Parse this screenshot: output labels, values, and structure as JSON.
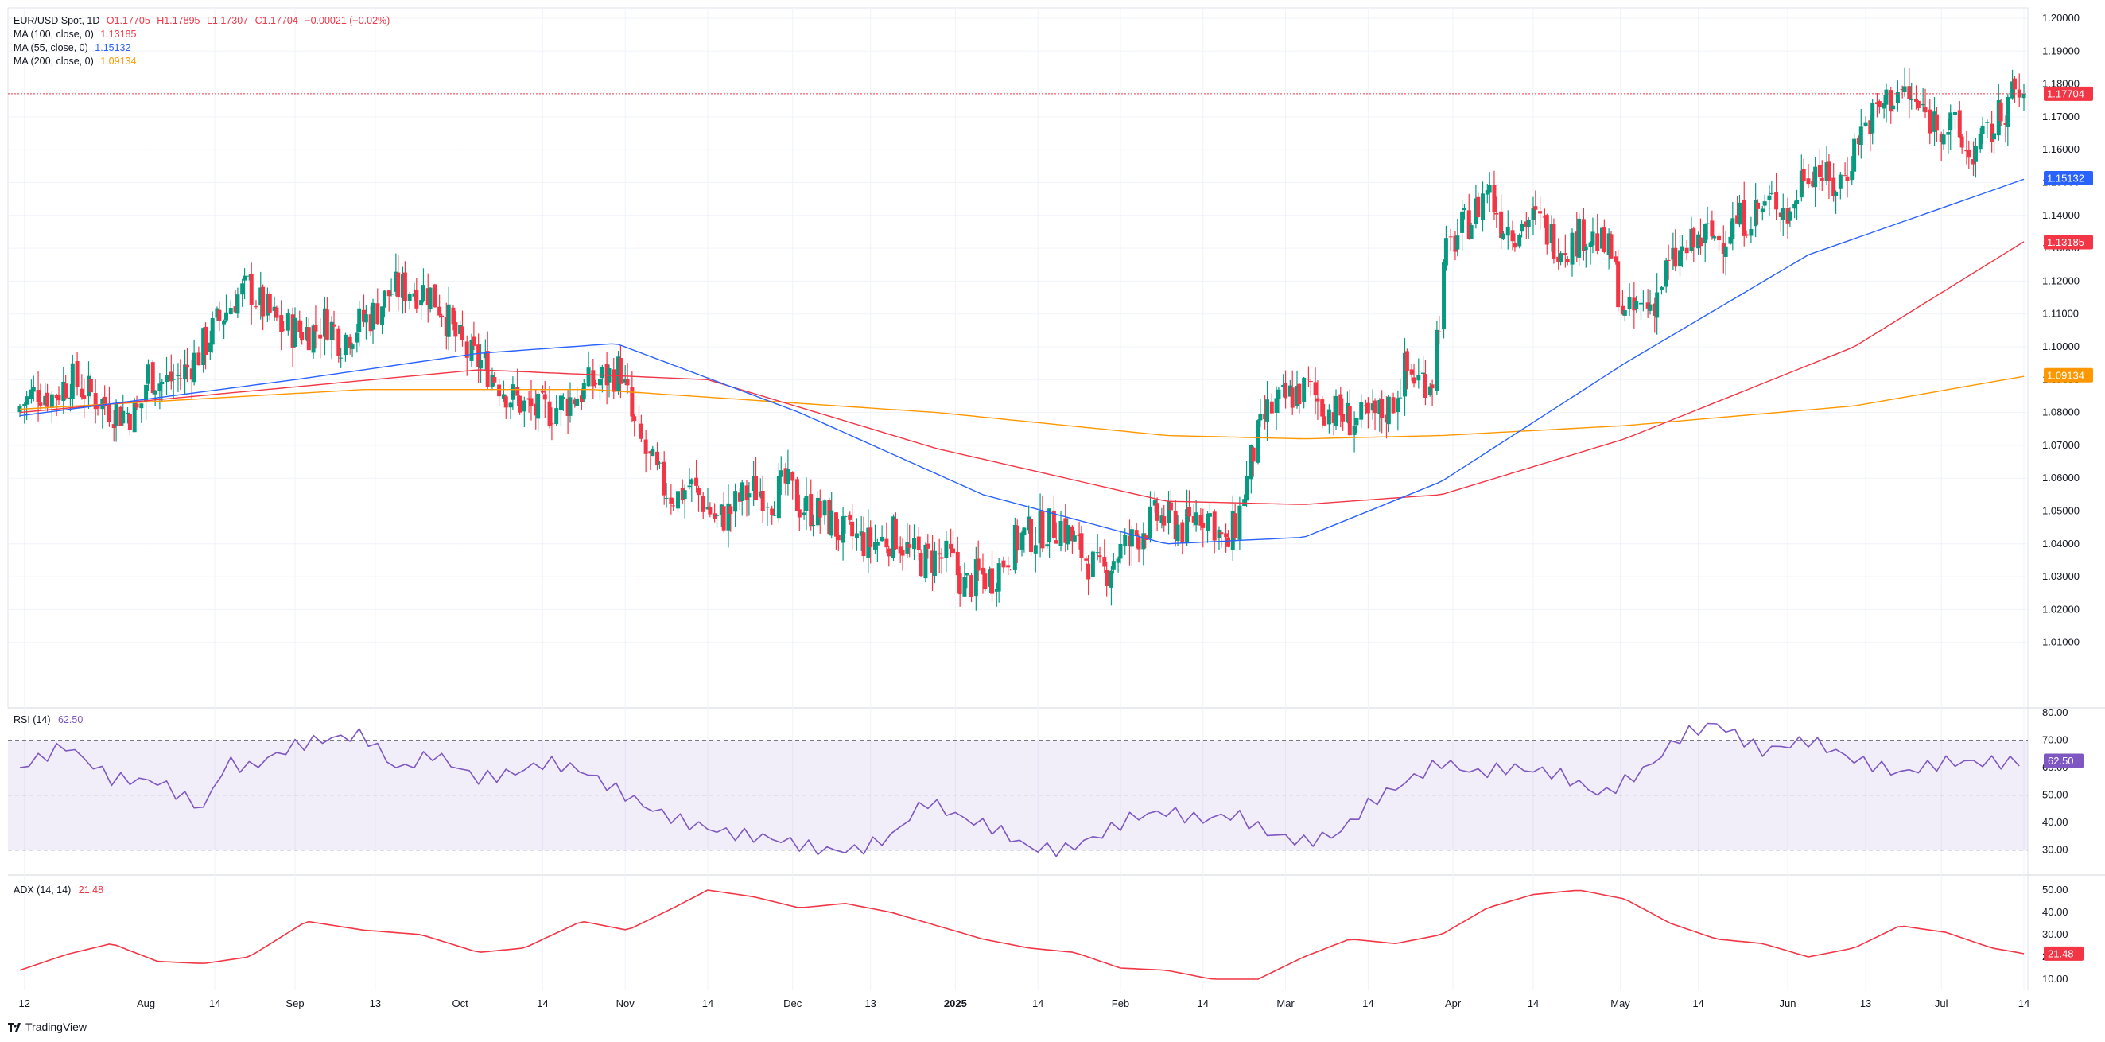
{
  "header": {
    "symbol": "EUR/USD Spot, 1D",
    "open": "O1.17705",
    "high": "H1.17895",
    "low": "L1.17307",
    "close": "C1.17704",
    "change": "−0.00021 (−0.02%)",
    "ma100_label": "MA (100, close, 0)",
    "ma100_value": "1.13185",
    "ma55_label": "MA (55, close, 0)",
    "ma55_value": "1.15132",
    "ma200_label": "MA (200, close, 0)",
    "ma200_value": "1.09134"
  },
  "rsi_panel": {
    "label": "RSI (14)",
    "value": "62.50"
  },
  "adx_panel": {
    "label": "ADX (14, 14)",
    "value": "21.48"
  },
  "brand": "TradingView",
  "colors": {
    "up": "#089981",
    "down": "#f23645",
    "ma55": "#2962ff",
    "ma100": "#f23645",
    "ma200": "#ff9800",
    "rsi": "#7e57c2",
    "adx": "#f23645",
    "last_price": "#f23645"
  },
  "chart_data": [
    {
      "type": "candlestick",
      "title": "EUR/USD Spot, 1D",
      "ylim": [
        1.0,
        1.2
      ],
      "yticks": [
        "1.20000",
        "1.19000",
        "1.18000",
        "1.17000",
        "1.16000",
        "1.15000",
        "1.14000",
        "1.13000",
        "1.12000",
        "1.11000",
        "1.10000",
        "1.09000",
        "1.08000",
        "1.07000",
        "1.06000",
        "1.05000",
        "1.04000",
        "1.03000",
        "1.02000",
        "1.01000"
      ],
      "xticks": [
        "12",
        "Aug",
        "14",
        "Sep",
        "13",
        "Oct",
        "14",
        "Nov",
        "14",
        "Dec",
        "13",
        "2025",
        "14",
        "Feb",
        "14",
        "Mar",
        "14",
        "Apr",
        "14",
        "May",
        "14",
        "Jun",
        "13",
        "Jul",
        "14"
      ],
      "close_path": [
        [
          0,
          1.082
        ],
        [
          8,
          1.087
        ],
        [
          14,
          1.085
        ],
        [
          22,
          1.09
        ],
        [
          30,
          1.086
        ],
        [
          38,
          1.082
        ],
        [
          44,
          1.08
        ],
        [
          52,
          1.08
        ],
        [
          56,
          1.092
        ],
        [
          62,
          1.089
        ],
        [
          70,
          1.091
        ],
        [
          78,
          1.098
        ],
        [
          86,
          1.107
        ],
        [
          94,
          1.115
        ],
        [
          100,
          1.118
        ],
        [
          106,
          1.112
        ],
        [
          114,
          1.106
        ],
        [
          120,
          1.105
        ],
        [
          128,
          1.105
        ],
        [
          134,
          1.108
        ],
        [
          140,
          1.102
        ],
        [
          146,
          1.106
        ],
        [
          154,
          1.11
        ],
        [
          162,
          1.117
        ],
        [
          170,
          1.118
        ],
        [
          178,
          1.117
        ],
        [
          184,
          1.112
        ],
        [
          190,
          1.103
        ],
        [
          196,
          1.097
        ],
        [
          202,
          1.095
        ],
        [
          208,
          1.09
        ],
        [
          214,
          1.085
        ],
        [
          220,
          1.082
        ],
        [
          226,
          1.08
        ],
        [
          232,
          1.081
        ],
        [
          238,
          1.083
        ],
        [
          244,
          1.086
        ],
        [
          250,
          1.089
        ],
        [
          256,
          1.091
        ],
        [
          262,
          1.093
        ],
        [
          268,
          1.075
        ],
        [
          274,
          1.066
        ],
        [
          280,
          1.058
        ],
        [
          286,
          1.054
        ],
        [
          292,
          1.058
        ],
        [
          298,
          1.053
        ],
        [
          304,
          1.047
        ],
        [
          310,
          1.05
        ],
        [
          316,
          1.055
        ],
        [
          322,
          1.057
        ],
        [
          328,
          1.054
        ],
        [
          334,
          1.058
        ],
        [
          340,
          1.052
        ],
        [
          346,
          1.05
        ],
        [
          352,
          1.048
        ],
        [
          358,
          1.043
        ],
        [
          364,
          1.042
        ],
        [
          370,
          1.04
        ],
        [
          376,
          1.041
        ],
        [
          382,
          1.043
        ],
        [
          388,
          1.037
        ],
        [
          394,
          1.035
        ],
        [
          400,
          1.036
        ],
        [
          406,
          1.035
        ],
        [
          412,
          1.027
        ],
        [
          418,
          1.03
        ],
        [
          424,
          1.03
        ],
        [
          430,
          1.036
        ],
        [
          436,
          1.042
        ],
        [
          442,
          1.043
        ],
        [
          448,
          1.045
        ],
        [
          454,
          1.046
        ],
        [
          460,
          1.04
        ],
        [
          466,
          1.035
        ],
        [
          472,
          1.03
        ],
        [
          478,
          1.037
        ],
        [
          484,
          1.04
        ],
        [
          490,
          1.045
        ],
        [
          496,
          1.048
        ],
        [
          502,
          1.047
        ],
        [
          508,
          1.044
        ],
        [
          514,
          1.05
        ],
        [
          520,
          1.048
        ],
        [
          526,
          1.038
        ],
        [
          532,
          1.05
        ],
        [
          538,
          1.068
        ],
        [
          544,
          1.08
        ],
        [
          550,
          1.083
        ],
        [
          556,
          1.086
        ],
        [
          562,
          1.087
        ],
        [
          568,
          1.082
        ],
        [
          574,
          1.08
        ],
        [
          580,
          1.078
        ],
        [
          586,
          1.077
        ],
        [
          592,
          1.079
        ],
        [
          598,
          1.082
        ],
        [
          604,
          1.093
        ],
        [
          610,
          1.09
        ],
        [
          616,
          1.091
        ],
        [
          622,
          1.128
        ],
        [
          628,
          1.135
        ],
        [
          634,
          1.14
        ],
        [
          640,
          1.149
        ],
        [
          646,
          1.138
        ],
        [
          652,
          1.136
        ],
        [
          658,
          1.139
        ],
        [
          664,
          1.137
        ],
        [
          670,
          1.132
        ],
        [
          676,
          1.131
        ],
        [
          682,
          1.135
        ],
        [
          688,
          1.132
        ],
        [
          694,
          1.128
        ],
        [
          700,
          1.108
        ],
        [
          706,
          1.112
        ],
        [
          712,
          1.113
        ],
        [
          718,
          1.123
        ],
        [
          724,
          1.128
        ],
        [
          730,
          1.131
        ],
        [
          736,
          1.134
        ],
        [
          742,
          1.133
        ],
        [
          748,
          1.138
        ],
        [
          754,
          1.14
        ],
        [
          760,
          1.142
        ],
        [
          766,
          1.145
        ],
        [
          772,
          1.14
        ],
        [
          778,
          1.154
        ],
        [
          784,
          1.155
        ],
        [
          790,
          1.148
        ],
        [
          796,
          1.152
        ],
        [
          802,
          1.165
        ],
        [
          808,
          1.17
        ],
        [
          814,
          1.175
        ],
        [
          820,
          1.178
        ],
        [
          826,
          1.174
        ],
        [
          832,
          1.17
        ],
        [
          838,
          1.168
        ],
        [
          844,
          1.166
        ],
        [
          850,
          1.158
        ],
        [
          856,
          1.162
        ],
        [
          862,
          1.168
        ],
        [
          868,
          1.176
        ],
        [
          874,
          1.177
        ]
      ],
      "sma100_path": [
        [
          0,
          1.08
        ],
        [
          200,
          1.093
        ],
        [
          300,
          1.09
        ],
        [
          400,
          1.069
        ],
        [
          500,
          1.053
        ],
        [
          560,
          1.052
        ],
        [
          620,
          1.055
        ],
        [
          700,
          1.072
        ],
        [
          800,
          1.1
        ],
        [
          874,
          1.132
        ]
      ],
      "sma55_path": [
        [
          0,
          1.079
        ],
        [
          120,
          1.09
        ],
        [
          200,
          1.098
        ],
        [
          260,
          1.101
        ],
        [
          340,
          1.08
        ],
        [
          420,
          1.055
        ],
        [
          500,
          1.04
        ],
        [
          560,
          1.042
        ],
        [
          620,
          1.059
        ],
        [
          700,
          1.095
        ],
        [
          780,
          1.128
        ],
        [
          874,
          1.151
        ]
      ],
      "sma200_path": [
        [
          0,
          1.081
        ],
        [
          150,
          1.087
        ],
        [
          250,
          1.087
        ],
        [
          400,
          1.08
        ],
        [
          500,
          1.073
        ],
        [
          560,
          1.072
        ],
        [
          620,
          1.073
        ],
        [
          700,
          1.076
        ],
        [
          800,
          1.082
        ],
        [
          874,
          1.091
        ]
      ],
      "last_price": 1.17704,
      "price_labels": [
        {
          "value": 1.17704,
          "text": "1.17704",
          "color": "#f23645"
        },
        {
          "value": 1.15132,
          "text": "1.15132",
          "color": "#2962ff"
        },
        {
          "value": 1.13185,
          "text": "1.13185",
          "color": "#f23645"
        },
        {
          "value": 1.09134,
          "text": "1.09134",
          "color": "#ff9800"
        }
      ]
    },
    {
      "type": "line",
      "title": "RSI (14)",
      "ylim": [
        25,
        80
      ],
      "yticks": [
        30,
        40,
        50,
        60,
        70,
        80
      ],
      "bands": [
        30,
        50,
        70
      ],
      "points": [
        [
          0,
          60
        ],
        [
          20,
          68
        ],
        [
          40,
          56
        ],
        [
          60,
          55
        ],
        [
          80,
          45
        ],
        [
          90,
          62
        ],
        [
          100,
          60
        ],
        [
          120,
          68
        ],
        [
          130,
          70
        ],
        [
          150,
          72
        ],
        [
          165,
          59
        ],
        [
          180,
          65
        ],
        [
          200,
          56
        ],
        [
          215,
          58
        ],
        [
          230,
          62
        ],
        [
          245,
          59
        ],
        [
          260,
          52
        ],
        [
          275,
          45
        ],
        [
          290,
          40
        ],
        [
          310,
          36
        ],
        [
          330,
          34
        ],
        [
          350,
          30
        ],
        [
          365,
          30
        ],
        [
          380,
          35
        ],
        [
          395,
          48
        ],
        [
          410,
          42
        ],
        [
          425,
          38
        ],
        [
          440,
          31
        ],
        [
          455,
          30
        ],
        [
          470,
          35
        ],
        [
          485,
          42
        ],
        [
          500,
          44
        ],
        [
          515,
          41
        ],
        [
          530,
          43
        ],
        [
          545,
          36
        ],
        [
          560,
          33
        ],
        [
          575,
          36
        ],
        [
          590,
          48
        ],
        [
          605,
          55
        ],
        [
          620,
          62
        ],
        [
          635,
          58
        ],
        [
          650,
          60
        ],
        [
          670,
          58
        ],
        [
          690,
          50
        ],
        [
          710,
          60
        ],
        [
          725,
          72
        ],
        [
          740,
          76
        ],
        [
          760,
          66
        ],
        [
          780,
          70
        ],
        [
          800,
          63
        ],
        [
          820,
          58
        ],
        [
          840,
          62
        ],
        [
          870,
          62
        ]
      ],
      "last_value": 62.5
    },
    {
      "type": "line",
      "title": "ADX (14, 14)",
      "ylim": [
        5,
        55
      ],
      "yticks": [
        10,
        20,
        30,
        40,
        50
      ],
      "points": [
        [
          0,
          14
        ],
        [
          20,
          21
        ],
        [
          40,
          26
        ],
        [
          60,
          18
        ],
        [
          80,
          17
        ],
        [
          100,
          20
        ],
        [
          125,
          36
        ],
        [
          150,
          32
        ],
        [
          175,
          30
        ],
        [
          200,
          22
        ],
        [
          220,
          24
        ],
        [
          245,
          36
        ],
        [
          265,
          32
        ],
        [
          285,
          42
        ],
        [
          300,
          50
        ],
        [
          320,
          47
        ],
        [
          340,
          42
        ],
        [
          360,
          44
        ],
        [
          380,
          40
        ],
        [
          400,
          34
        ],
        [
          420,
          28
        ],
        [
          440,
          24
        ],
        [
          460,
          22
        ],
        [
          480,
          15
        ],
        [
          500,
          14
        ],
        [
          520,
          10
        ],
        [
          540,
          10
        ],
        [
          560,
          20
        ],
        [
          580,
          28
        ],
        [
          600,
          26
        ],
        [
          620,
          30
        ],
        [
          640,
          42
        ],
        [
          660,
          48
        ],
        [
          680,
          50
        ],
        [
          700,
          46
        ],
        [
          720,
          35
        ],
        [
          740,
          28
        ],
        [
          760,
          26
        ],
        [
          780,
          20
        ],
        [
          800,
          24
        ],
        [
          820,
          34
        ],
        [
          840,
          31
        ],
        [
          860,
          24
        ],
        [
          874,
          21.48
        ]
      ],
      "last_value": 21.48
    }
  ]
}
